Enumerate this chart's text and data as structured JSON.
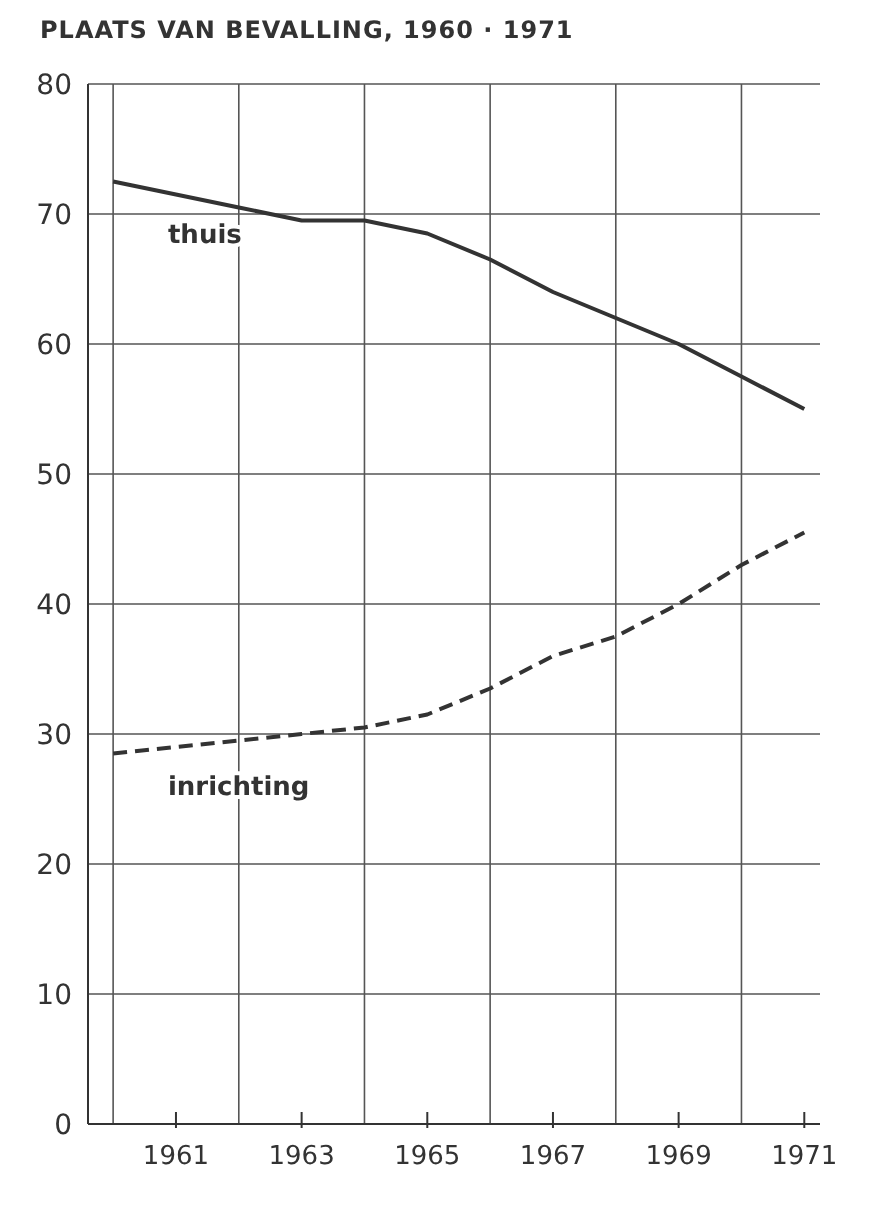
{
  "chart_data": {
    "type": "line",
    "title": "PLAATS VAN BEVALLING, 1960 · 1971",
    "x": [
      1960,
      1961,
      1962,
      1963,
      1964,
      1965,
      1966,
      1967,
      1968,
      1969,
      1970,
      1971
    ],
    "series": [
      {
        "name": "thuis",
        "color": "#333333",
        "line_style": "solid",
        "values": [
          72.5,
          71.5,
          70.5,
          69.5,
          69.5,
          68.5,
          66.5,
          64,
          62,
          60,
          57.5,
          55
        ]
      },
      {
        "name": "inrichting",
        "color": "#333333",
        "line_style": "dashed",
        "values": [
          28.5,
          29,
          29.5,
          30,
          30.5,
          31.5,
          33.5,
          36,
          37.5,
          40,
          43,
          45.5
        ]
      }
    ],
    "xlim": [
      1959.6,
      1971.25
    ],
    "xticks": [
      {
        "value": 1960,
        "label": null
      },
      1961,
      {
        "value": 1962,
        "label": null
      },
      1963,
      {
        "value": 1964,
        "label": null
      },
      1965,
      {
        "value": 1966,
        "label": null
      },
      1967,
      {
        "value": 1968,
        "label": null
      },
      1969,
      {
        "value": 1970,
        "label": null
      },
      1971
    ],
    "ylim": [
      0,
      80
    ],
    "yticks": [
      0,
      10,
      20,
      30,
      40,
      50,
      60,
      70,
      80
    ],
    "grid": true,
    "legend": false,
    "marker": "none"
  }
}
